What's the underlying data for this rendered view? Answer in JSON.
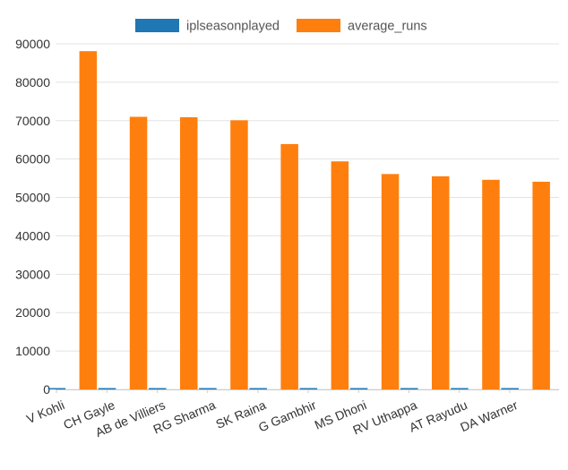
{
  "chart_data": {
    "type": "bar",
    "categories": [
      "V Kohli",
      "CH Gayle",
      "AB de Villiers",
      "RG Sharma",
      "SK Raina",
      "G Gambhir",
      "MS Dhoni",
      "RV Uthappa",
      "AT Rayudu",
      "DA Warner"
    ],
    "series": [
      {
        "name": "iplseasonplayed",
        "color": "#1f77b4",
        "values": [
          13,
          12,
          13,
          13,
          12,
          12,
          12,
          13,
          12,
          11
        ]
      },
      {
        "name": "average_runs",
        "color": "#ff7f0e",
        "values": [
          88100,
          71000,
          70900,
          70100,
          63900,
          59400,
          56100,
          55500,
          54600,
          54100
        ]
      }
    ],
    "ylim": [
      0,
      90000
    ],
    "yticks": [
      "0",
      "10000",
      "20000",
      "30000",
      "40000",
      "50000",
      "60000",
      "70000",
      "80000",
      "90000"
    ],
    "grid": true,
    "legend_position": "top-center",
    "xlabel": "",
    "ylabel": ""
  }
}
